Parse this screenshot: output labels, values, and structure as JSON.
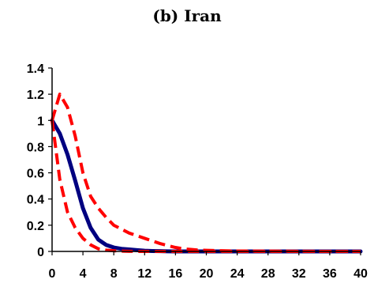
{
  "chart_data": {
    "type": "line",
    "title": "(b) Iran",
    "xlabel": "",
    "ylabel": "",
    "xlim": [
      0,
      40
    ],
    "ylim": [
      0,
      1.4
    ],
    "x_ticks": [
      0,
      4,
      8,
      12,
      16,
      20,
      24,
      28,
      32,
      36,
      40
    ],
    "x_tick_labels": [
      "0",
      "4",
      "8",
      "12",
      "16",
      "20",
      "24",
      "28",
      "32",
      "36",
      "40"
    ],
    "y_ticks": [
      0,
      0.2,
      0.4,
      0.6,
      0.8,
      1,
      1.2,
      1.4
    ],
    "y_tick_labels": [
      "0",
      "0.2",
      "0.4",
      "0.6",
      "0.8",
      "1",
      "1.2",
      "1.4"
    ],
    "grid": false,
    "legend": "none",
    "series": [
      {
        "style": "solid",
        "color": "#000080",
        "x": [
          0,
          1,
          2,
          3,
          4,
          5,
          6,
          7,
          8,
          9,
          10,
          11,
          12,
          13,
          14,
          15,
          16,
          18,
          20,
          24,
          28,
          32,
          36,
          40
        ],
        "y": [
          1.0,
          0.9,
          0.74,
          0.54,
          0.33,
          0.18,
          0.09,
          0.05,
          0.03,
          0.02,
          0.015,
          0.01,
          0.005,
          0.003,
          0.002,
          0.001,
          0,
          0,
          0,
          0,
          0,
          0,
          0,
          0
        ]
      },
      {
        "style": "dashed",
        "color": "#ff0000",
        "x": [
          0,
          1,
          2,
          3,
          4,
          5,
          6,
          7,
          8,
          9,
          10,
          11,
          12,
          13,
          14,
          15,
          16,
          17,
          18,
          19,
          20,
          22,
          24,
          28,
          32,
          36,
          40
        ],
        "y": [
          1.0,
          1.2,
          1.1,
          0.88,
          0.6,
          0.42,
          0.33,
          0.26,
          0.2,
          0.17,
          0.14,
          0.12,
          0.1,
          0.08,
          0.06,
          0.045,
          0.03,
          0.02,
          0.015,
          0.01,
          0.008,
          0.005,
          0.003,
          0.002,
          0.001,
          0,
          0
        ]
      },
      {
        "style": "dashed",
        "color": "#ff0000",
        "x": [
          0,
          1,
          2,
          3,
          4,
          5,
          6,
          7,
          8,
          9,
          10,
          11,
          12,
          14,
          16,
          20,
          24,
          28,
          32,
          36,
          40
        ],
        "y": [
          1.0,
          0.55,
          0.3,
          0.18,
          0.1,
          0.05,
          0.02,
          0.01,
          0.005,
          0.002,
          0.001,
          0,
          0,
          0,
          0,
          0,
          0,
          0,
          0,
          0,
          0
        ]
      }
    ]
  }
}
